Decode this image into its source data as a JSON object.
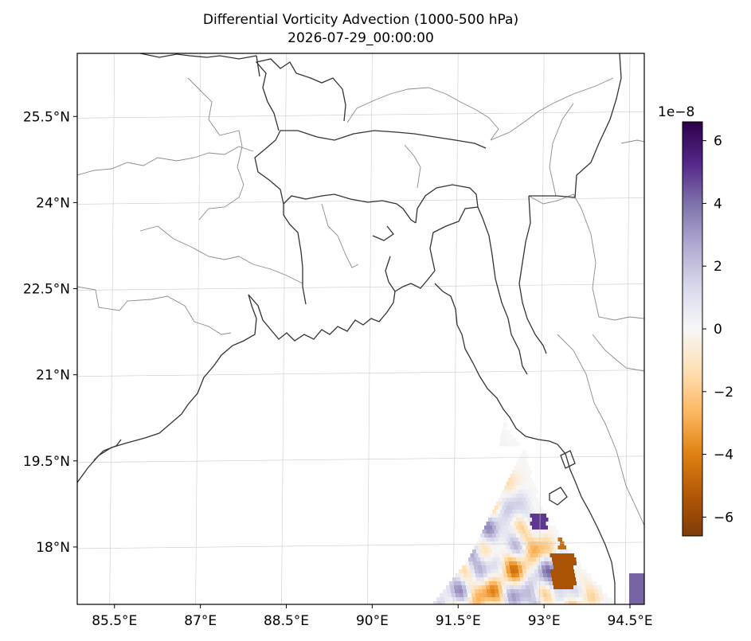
{
  "chart_data": {
    "type": "heatmap",
    "title": "Differential Vorticity Advection (1000-500 hPa)",
    "subtitle": "2026-07-29_00:00:00",
    "x_ticks": [
      "85.5°E",
      "87°E",
      "88.5°E",
      "90°E",
      "91.5°E",
      "93°E",
      "94.5°E"
    ],
    "y_ticks": [
      "25.5°N",
      "24°N",
      "22.5°N",
      "21°N",
      "19.5°N",
      "18°N"
    ],
    "x_tick_values": [
      85.5,
      87,
      88.5,
      90,
      91.5,
      93,
      94.5
    ],
    "y_tick_values": [
      25.5,
      24,
      22.5,
      21,
      19.5,
      18
    ],
    "xlim": [
      84.85,
      94.75
    ],
    "ylim": [
      17.0,
      26.6
    ],
    "colorbar": {
      "colormap": "PuOr",
      "range": [
        -6.6,
        6.6
      ],
      "exponent_label": "1e−8",
      "ticks": [
        "6",
        "4",
        "2",
        "0",
        "−2",
        "−4",
        "−6"
      ],
      "tick_values": [
        6,
        4,
        2,
        0,
        -2,
        -4,
        -6
      ],
      "low_color": "#7f3b08",
      "mid_color": "#f7f7f7",
      "high_color": "#2d004b"
    },
    "grid": true,
    "legend": "colorbar-right",
    "field_region": "Bay of Bengal south-east corner (lon > 91.3°E, lat < 20.5°N)"
  }
}
